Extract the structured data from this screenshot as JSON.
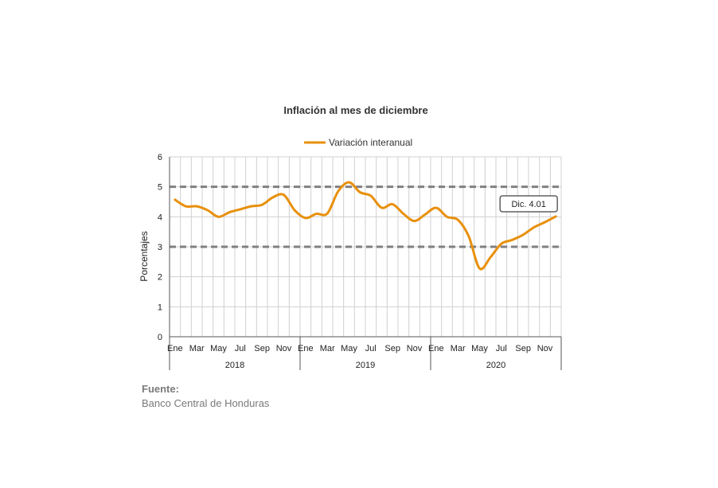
{
  "chart_data": {
    "type": "line",
    "title": "Inflación al mes de diciembre",
    "ylabel": "Porcentajes",
    "ylim": [
      0,
      6
    ],
    "yticks": [
      0,
      1,
      2,
      3,
      4,
      5,
      6
    ],
    "grid": true,
    "legend_position": "top",
    "month_labels": [
      "Ene",
      "Mar",
      "May",
      "Jul",
      "Sep",
      "Nov",
      "Ene",
      "Mar",
      "May",
      "Jul",
      "Sep",
      "Nov",
      "Ene",
      "Mar",
      "May",
      "Jul",
      "Sep",
      "Nov"
    ],
    "years": [
      "2018",
      "2019",
      "2020"
    ],
    "x": [
      "2018-01",
      "2018-02",
      "2018-03",
      "2018-04",
      "2018-05",
      "2018-06",
      "2018-07",
      "2018-08",
      "2018-09",
      "2018-10",
      "2018-11",
      "2018-12",
      "2019-01",
      "2019-02",
      "2019-03",
      "2019-04",
      "2019-05",
      "2019-06",
      "2019-07",
      "2019-08",
      "2019-09",
      "2019-10",
      "2019-11",
      "2019-12",
      "2020-01",
      "2020-02",
      "2020-03",
      "2020-04",
      "2020-05",
      "2020-06",
      "2020-07",
      "2020-08",
      "2020-09",
      "2020-10",
      "2020-11",
      "2020-12"
    ],
    "series": [
      {
        "name": "Variación interanual",
        "color": "#e8900c",
        "values": [
          4.57,
          4.35,
          4.35,
          4.22,
          4.0,
          4.15,
          4.25,
          4.35,
          4.4,
          4.65,
          4.73,
          4.22,
          3.96,
          4.1,
          4.11,
          4.85,
          5.15,
          4.82,
          4.7,
          4.3,
          4.42,
          4.1,
          3.86,
          4.08,
          4.3,
          4.0,
          3.9,
          3.35,
          2.28,
          2.65,
          3.1,
          3.23,
          3.4,
          3.65,
          3.82,
          4.01
        ]
      }
    ],
    "reference_lines": [
      {
        "y": 3,
        "color": "#808080",
        "style": "dashed"
      },
      {
        "y": 5,
        "color": "#808080",
        "style": "dashed"
      }
    ],
    "annotation": {
      "text": "Dic. 4.01",
      "x": "2020-12",
      "y": 4.01
    }
  },
  "source": {
    "heading": "Fuente:",
    "text": "Banco Central de Honduras"
  }
}
